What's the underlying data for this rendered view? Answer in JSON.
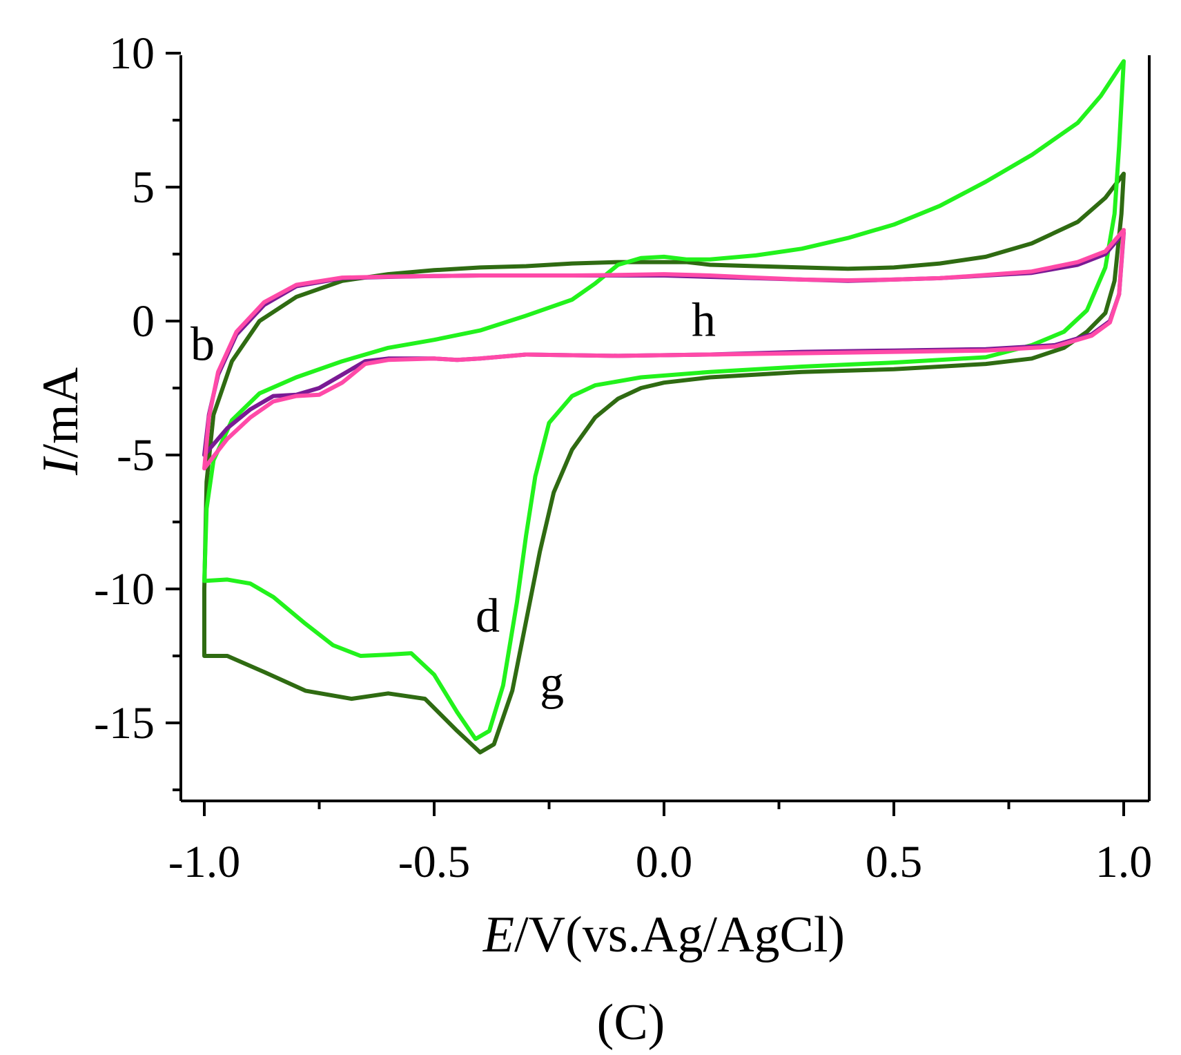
{
  "chart_data": {
    "type": "line",
    "title": "",
    "panel_label": "(C)",
    "xlabel_italic": "E",
    "xlabel_rest": "/V(vs.Ag/AgCl)",
    "ylabel_italic": "I",
    "ylabel_rest": "/mA",
    "xlim": [
      -1.05,
      1.05
    ],
    "ylim": [
      -17.5,
      10.5
    ],
    "x_ticks": [
      {
        "value": -1.0,
        "label": "-1.0"
      },
      {
        "value": -0.5,
        "label": "-0.5"
      },
      {
        "value": 0.0,
        "label": "0.0"
      },
      {
        "value": 0.5,
        "label": "0.5"
      },
      {
        "value": 1.0,
        "label": "1.0"
      }
    ],
    "x_minor_ticks": [
      -0.75,
      -0.25,
      0.25,
      0.75
    ],
    "y_ticks": [
      {
        "value": 10,
        "label": "10"
      },
      {
        "value": 5,
        "label": "5"
      },
      {
        "value": 0,
        "label": "0"
      },
      {
        "value": -5,
        "label": "-5"
      },
      {
        "value": -10,
        "label": "-10"
      },
      {
        "value": -15,
        "label": "-15"
      }
    ],
    "y_minor_ticks": [
      7.5,
      2.5,
      -2.5,
      -7.5,
      -12.5,
      -17.5
    ],
    "series": [
      {
        "name": "g",
        "color": "#2f6b12",
        "label_at": [
          -0.27,
          -14.1
        ],
        "points": [
          [
            -1.0,
            -12.5
          ],
          [
            -0.95,
            -12.5
          ],
          [
            -0.87,
            -13.1
          ],
          [
            -0.78,
            -13.8
          ],
          [
            -0.68,
            -14.1
          ],
          [
            -0.6,
            -13.9
          ],
          [
            -0.52,
            -14.1
          ],
          [
            -0.45,
            -15.3
          ],
          [
            -0.4,
            -16.1
          ],
          [
            -0.37,
            -15.8
          ],
          [
            -0.33,
            -13.8
          ],
          [
            -0.3,
            -11.2
          ],
          [
            -0.27,
            -8.6
          ],
          [
            -0.24,
            -6.4
          ],
          [
            -0.2,
            -4.8
          ],
          [
            -0.15,
            -3.6
          ],
          [
            -0.1,
            -2.9
          ],
          [
            -0.05,
            -2.5
          ],
          [
            0.0,
            -2.3
          ],
          [
            0.1,
            -2.1
          ],
          [
            0.3,
            -1.9
          ],
          [
            0.5,
            -1.8
          ],
          [
            0.7,
            -1.6
          ],
          [
            0.8,
            -1.4
          ],
          [
            0.87,
            -1.0
          ],
          [
            0.92,
            -0.4
          ],
          [
            0.96,
            0.3
          ],
          [
            0.98,
            1.5
          ],
          [
            0.995,
            4.0
          ],
          [
            1.0,
            5.5
          ],
          [
            0.96,
            4.6
          ],
          [
            0.9,
            3.7
          ],
          [
            0.8,
            2.9
          ],
          [
            0.7,
            2.4
          ],
          [
            0.6,
            2.15
          ],
          [
            0.5,
            2.0
          ],
          [
            0.4,
            1.95
          ],
          [
            0.3,
            2.0
          ],
          [
            0.2,
            2.05
          ],
          [
            0.1,
            2.1
          ],
          [
            0.05,
            2.2
          ],
          [
            0.0,
            2.2
          ],
          [
            -0.1,
            2.2
          ],
          [
            -0.2,
            2.15
          ],
          [
            -0.3,
            2.05
          ],
          [
            -0.4,
            2.0
          ],
          [
            -0.5,
            1.9
          ],
          [
            -0.6,
            1.75
          ],
          [
            -0.7,
            1.5
          ],
          [
            -0.8,
            0.9
          ],
          [
            -0.88,
            0.0
          ],
          [
            -0.94,
            -1.5
          ],
          [
            -0.98,
            -3.5
          ],
          [
            -0.995,
            -6.0
          ],
          [
            -1.0,
            -10.0
          ],
          [
            -1.0,
            -12.5
          ]
        ]
      },
      {
        "name": "d",
        "color": "#22f21c",
        "label_at": [
          -0.41,
          -11.6
        ],
        "points": [
          [
            -1.0,
            -9.7
          ],
          [
            -0.95,
            -9.65
          ],
          [
            -0.9,
            -9.8
          ],
          [
            -0.85,
            -10.3
          ],
          [
            -0.78,
            -11.3
          ],
          [
            -0.72,
            -12.1
          ],
          [
            -0.66,
            -12.5
          ],
          [
            -0.6,
            -12.45
          ],
          [
            -0.55,
            -12.4
          ],
          [
            -0.5,
            -13.2
          ],
          [
            -0.45,
            -14.6
          ],
          [
            -0.41,
            -15.6
          ],
          [
            -0.38,
            -15.3
          ],
          [
            -0.35,
            -13.6
          ],
          [
            -0.32,
            -10.5
          ],
          [
            -0.3,
            -8.0
          ],
          [
            -0.28,
            -5.8
          ],
          [
            -0.25,
            -3.8
          ],
          [
            -0.2,
            -2.8
          ],
          [
            -0.15,
            -2.4
          ],
          [
            -0.05,
            -2.1
          ],
          [
            0.1,
            -1.9
          ],
          [
            0.3,
            -1.7
          ],
          [
            0.5,
            -1.55
          ],
          [
            0.7,
            -1.35
          ],
          [
            0.8,
            -0.9
          ],
          [
            0.87,
            -0.4
          ],
          [
            0.92,
            0.4
          ],
          [
            0.96,
            2.0
          ],
          [
            0.98,
            4.0
          ],
          [
            0.99,
            6.5
          ],
          [
            1.0,
            9.7
          ],
          [
            0.95,
            8.4
          ],
          [
            0.9,
            7.4
          ],
          [
            0.8,
            6.2
          ],
          [
            0.7,
            5.2
          ],
          [
            0.6,
            4.3
          ],
          [
            0.5,
            3.6
          ],
          [
            0.4,
            3.1
          ],
          [
            0.3,
            2.7
          ],
          [
            0.2,
            2.45
          ],
          [
            0.1,
            2.3
          ],
          [
            0.05,
            2.3
          ],
          [
            0.0,
            2.4
          ],
          [
            -0.05,
            2.35
          ],
          [
            -0.1,
            2.1
          ],
          [
            -0.15,
            1.4
          ],
          [
            -0.2,
            0.8
          ],
          [
            -0.3,
            0.2
          ],
          [
            -0.4,
            -0.35
          ],
          [
            -0.5,
            -0.7
          ],
          [
            -0.6,
            -1.0
          ],
          [
            -0.7,
            -1.5
          ],
          [
            -0.8,
            -2.1
          ],
          [
            -0.88,
            -2.7
          ],
          [
            -0.94,
            -3.7
          ],
          [
            -0.98,
            -5.2
          ],
          [
            -0.995,
            -7.0
          ],
          [
            -1.0,
            -9.7
          ]
        ]
      },
      {
        "name": "b",
        "color": "#7a1a94",
        "label_at": [
          -1.03,
          -1.45
        ],
        "points": [
          [
            -1.0,
            -5.0
          ],
          [
            -0.95,
            -4.0
          ],
          [
            -0.9,
            -3.3
          ],
          [
            -0.85,
            -2.8
          ],
          [
            -0.8,
            -2.75
          ],
          [
            -0.75,
            -2.5
          ],
          [
            -0.7,
            -2.0
          ],
          [
            -0.65,
            -1.5
          ],
          [
            -0.6,
            -1.4
          ],
          [
            -0.5,
            -1.4
          ],
          [
            -0.45,
            -1.45
          ],
          [
            -0.4,
            -1.4
          ],
          [
            -0.3,
            -1.25
          ],
          [
            -0.1,
            -1.3
          ],
          [
            0.1,
            -1.25
          ],
          [
            0.3,
            -1.15
          ],
          [
            0.5,
            -1.1
          ],
          [
            0.7,
            -1.05
          ],
          [
            0.85,
            -0.9
          ],
          [
            0.93,
            -0.5
          ],
          [
            0.97,
            0.0
          ],
          [
            0.99,
            1.0
          ],
          [
            1.0,
            3.3
          ],
          [
            0.96,
            2.5
          ],
          [
            0.9,
            2.1
          ],
          [
            0.8,
            1.8
          ],
          [
            0.7,
            1.7
          ],
          [
            0.6,
            1.6
          ],
          [
            0.5,
            1.55
          ],
          [
            0.4,
            1.5
          ],
          [
            0.3,
            1.55
          ],
          [
            0.2,
            1.6
          ],
          [
            0.1,
            1.65
          ],
          [
            0.0,
            1.7
          ],
          [
            -0.1,
            1.7
          ],
          [
            -0.2,
            1.7
          ],
          [
            -0.3,
            1.7
          ],
          [
            -0.4,
            1.7
          ],
          [
            -0.5,
            1.68
          ],
          [
            -0.6,
            1.65
          ],
          [
            -0.7,
            1.6
          ],
          [
            -0.8,
            1.3
          ],
          [
            -0.87,
            0.6
          ],
          [
            -0.93,
            -0.5
          ],
          [
            -0.97,
            -2.0
          ],
          [
            -0.99,
            -3.5
          ],
          [
            -1.0,
            -5.0
          ]
        ]
      },
      {
        "name": "h",
        "color": "#ff4aa8",
        "label_at": [
          0.06,
          -0.55
        ],
        "points": [
          [
            -1.0,
            -5.5
          ],
          [
            -0.95,
            -4.4
          ],
          [
            -0.9,
            -3.6
          ],
          [
            -0.85,
            -3.0
          ],
          [
            -0.8,
            -2.8
          ],
          [
            -0.75,
            -2.75
          ],
          [
            -0.7,
            -2.3
          ],
          [
            -0.65,
            -1.6
          ],
          [
            -0.6,
            -1.45
          ],
          [
            -0.5,
            -1.4
          ],
          [
            -0.45,
            -1.45
          ],
          [
            -0.4,
            -1.4
          ],
          [
            -0.3,
            -1.25
          ],
          [
            -0.1,
            -1.3
          ],
          [
            0.1,
            -1.25
          ],
          [
            0.3,
            -1.2
          ],
          [
            0.5,
            -1.15
          ],
          [
            0.7,
            -1.1
          ],
          [
            0.85,
            -0.95
          ],
          [
            0.93,
            -0.55
          ],
          [
            0.97,
            -0.05
          ],
          [
            0.99,
            1.0
          ],
          [
            1.0,
            3.4
          ],
          [
            0.96,
            2.6
          ],
          [
            0.9,
            2.2
          ],
          [
            0.8,
            1.85
          ],
          [
            0.7,
            1.72
          ],
          [
            0.6,
            1.6
          ],
          [
            0.5,
            1.55
          ],
          [
            0.4,
            1.52
          ],
          [
            0.3,
            1.55
          ],
          [
            0.2,
            1.62
          ],
          [
            0.1,
            1.7
          ],
          [
            0.0,
            1.75
          ],
          [
            -0.1,
            1.72
          ],
          [
            -0.2,
            1.7
          ],
          [
            -0.3,
            1.7
          ],
          [
            -0.4,
            1.7
          ],
          [
            -0.5,
            1.68
          ],
          [
            -0.6,
            1.66
          ],
          [
            -0.7,
            1.62
          ],
          [
            -0.8,
            1.35
          ],
          [
            -0.87,
            0.7
          ],
          [
            -0.93,
            -0.4
          ],
          [
            -0.97,
            -1.9
          ],
          [
            -0.99,
            -3.6
          ],
          [
            -1.0,
            -5.5
          ]
        ]
      }
    ]
  }
}
